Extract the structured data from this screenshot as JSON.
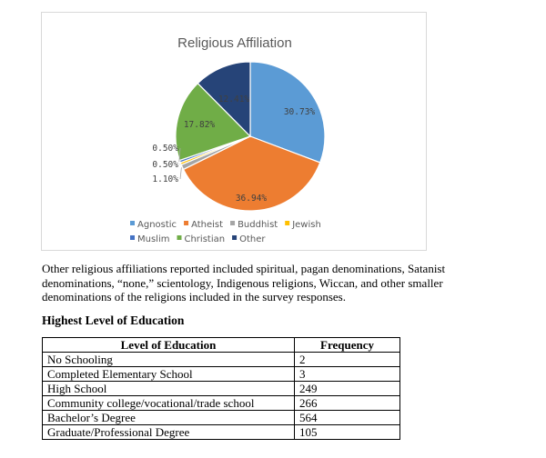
{
  "chart_data": {
    "type": "pie",
    "title": "Religious Affiliation",
    "categories": [
      "Agnostic",
      "Atheist",
      "Buddhist",
      "Jewish",
      "Muslim",
      "Christian",
      "Other"
    ],
    "values": [
      30.73,
      36.94,
      1.1,
      0.5,
      0.5,
      17.82,
      12.41
    ],
    "value_labels": [
      "30.73%",
      "36.94%",
      "1.10%",
      "0.50%",
      "0.50%",
      "17.82%",
      "12.41%"
    ],
    "colors": [
      "#5b9bd5",
      "#ed7d31",
      "#a5a5a5",
      "#ffc000",
      "#4472c4",
      "#70ad47",
      "#264478"
    ],
    "legend_placement": "bottom"
  },
  "paragraph": "Other religious affiliations reported included spiritual, pagan denominations, Satanist denominations, “none,” scientology, Indigenous religions, Wiccan, and other smaller denominations of the religions included in the survey responses.",
  "education": {
    "heading": "Highest Level of Education",
    "columns": [
      "Level of Education",
      "Frequency"
    ],
    "rows": [
      [
        "No Schooling",
        "2"
      ],
      [
        "Completed Elementary School",
        "3"
      ],
      [
        "High School",
        "249"
      ],
      [
        "Community college/vocational/trade school",
        "266"
      ],
      [
        "Bachelor’s Degree",
        "564"
      ],
      [
        "Graduate/Professional Degree",
        "105"
      ]
    ]
  }
}
